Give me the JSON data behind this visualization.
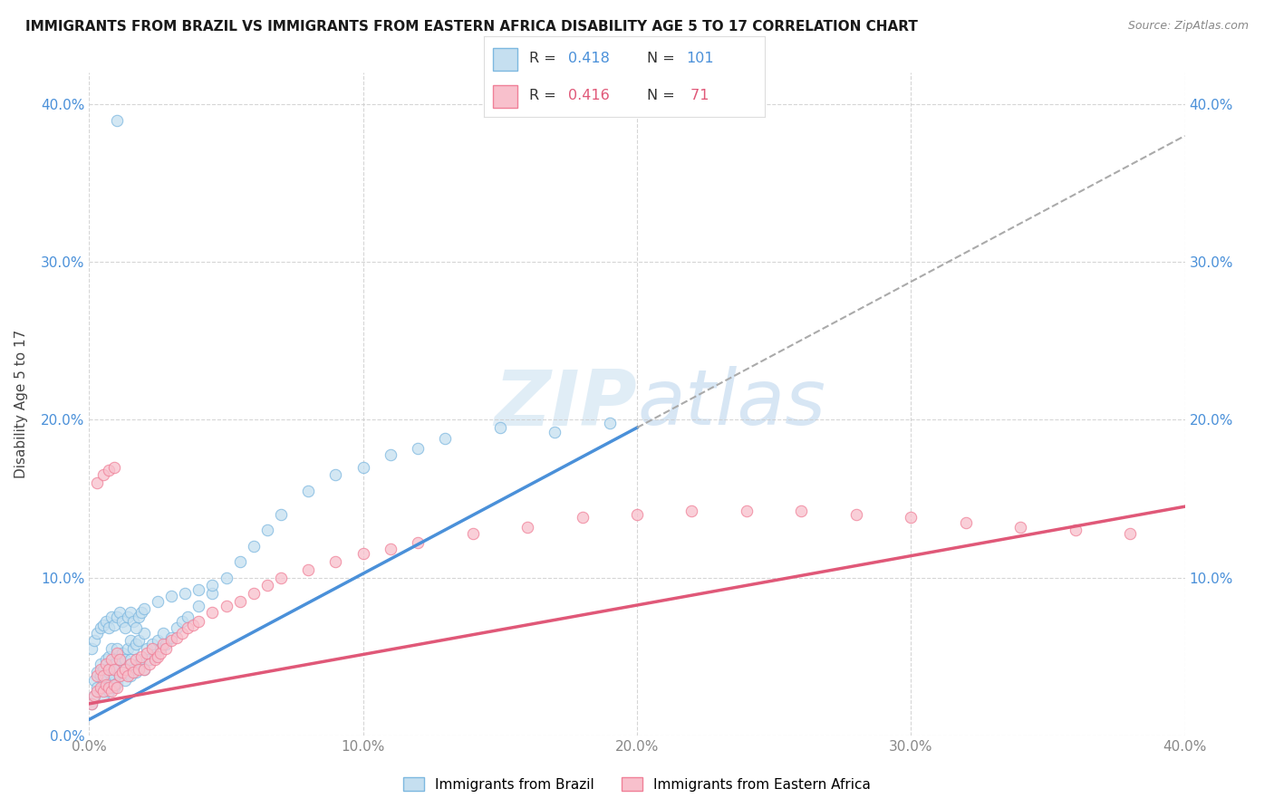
{
  "title": "IMMIGRANTS FROM BRAZIL VS IMMIGRANTS FROM EASTERN AFRICA DISABILITY AGE 5 TO 17 CORRELATION CHART",
  "source": "Source: ZipAtlas.com",
  "ylabel": "Disability Age 5 to 17",
  "xlim": [
    0.0,
    0.4
  ],
  "ylim": [
    0.0,
    0.42
  ],
  "xticks": [
    0.0,
    0.1,
    0.2,
    0.3,
    0.4
  ],
  "yticks": [
    0.0,
    0.1,
    0.2,
    0.3,
    0.4
  ],
  "brazil_color": "#7db8e0",
  "brazil_color_fill": "#c5dff0",
  "eastern_africa_color": "#f08098",
  "eastern_africa_color_fill": "#f8c0cc",
  "brazil_R": 0.418,
  "brazil_N": 101,
  "eastern_africa_R": 0.416,
  "eastern_africa_N": 71,
  "brazil_line_color": "#4a90d9",
  "eastern_africa_line_color": "#e05878",
  "dashed_line_color": "#aaaaaa",
  "legend_label_brazil": "Immigrants from Brazil",
  "legend_label_eastern": "Immigrants from Eastern Africa",
  "background_color": "#ffffff",
  "grid_color": "#cccccc",
  "title_color": "#1a1a1a",
  "watermark_color": "#c8dff0",
  "tick_color_blue": "#4a90d9",
  "tick_color_gray": "#888888",
  "brazil_trend_x0": 0.0,
  "brazil_trend_y0": 0.01,
  "brazil_trend_x1": 0.2,
  "brazil_trend_y1": 0.195,
  "brazil_trend_solid_end": 0.2,
  "brazil_trend_dashed_end": 0.4,
  "ea_trend_x0": 0.0,
  "ea_trend_y0": 0.02,
  "ea_trend_x1": 0.4,
  "ea_trend_y1": 0.145,
  "brazil_scatter_x": [
    0.001,
    0.002,
    0.002,
    0.003,
    0.003,
    0.004,
    0.004,
    0.004,
    0.005,
    0.005,
    0.005,
    0.006,
    0.006,
    0.006,
    0.007,
    0.007,
    0.007,
    0.008,
    0.008,
    0.008,
    0.008,
    0.009,
    0.009,
    0.009,
    0.01,
    0.01,
    0.01,
    0.011,
    0.011,
    0.012,
    0.012,
    0.013,
    0.013,
    0.014,
    0.014,
    0.015,
    0.015,
    0.015,
    0.016,
    0.016,
    0.017,
    0.017,
    0.018,
    0.018,
    0.019,
    0.02,
    0.02,
    0.021,
    0.022,
    0.023,
    0.024,
    0.025,
    0.026,
    0.027,
    0.028,
    0.03,
    0.032,
    0.034,
    0.036,
    0.04,
    0.045,
    0.05,
    0.055,
    0.06,
    0.065,
    0.07,
    0.08,
    0.09,
    0.1,
    0.11,
    0.12,
    0.13,
    0.15,
    0.17,
    0.19,
    0.001,
    0.002,
    0.003,
    0.004,
    0.005,
    0.006,
    0.007,
    0.008,
    0.009,
    0.01,
    0.011,
    0.012,
    0.013,
    0.014,
    0.015,
    0.016,
    0.017,
    0.018,
    0.019,
    0.02,
    0.025,
    0.03,
    0.035,
    0.04,
    0.045,
    0.01
  ],
  "brazil_scatter_y": [
    0.02,
    0.025,
    0.035,
    0.03,
    0.04,
    0.028,
    0.038,
    0.045,
    0.025,
    0.035,
    0.042,
    0.03,
    0.038,
    0.048,
    0.028,
    0.04,
    0.05,
    0.032,
    0.042,
    0.035,
    0.055,
    0.03,
    0.038,
    0.045,
    0.033,
    0.042,
    0.055,
    0.038,
    0.048,
    0.04,
    0.052,
    0.035,
    0.048,
    0.04,
    0.055,
    0.038,
    0.048,
    0.06,
    0.042,
    0.055,
    0.04,
    0.058,
    0.045,
    0.06,
    0.048,
    0.042,
    0.065,
    0.055,
    0.048,
    0.058,
    0.05,
    0.06,
    0.055,
    0.065,
    0.058,
    0.062,
    0.068,
    0.072,
    0.075,
    0.082,
    0.09,
    0.1,
    0.11,
    0.12,
    0.13,
    0.14,
    0.155,
    0.165,
    0.17,
    0.178,
    0.182,
    0.188,
    0.195,
    0.192,
    0.198,
    0.055,
    0.06,
    0.065,
    0.068,
    0.07,
    0.072,
    0.068,
    0.075,
    0.07,
    0.075,
    0.078,
    0.072,
    0.068,
    0.075,
    0.078,
    0.072,
    0.068,
    0.075,
    0.078,
    0.08,
    0.085,
    0.088,
    0.09,
    0.092,
    0.095,
    0.39
  ],
  "eastern_scatter_x": [
    0.001,
    0.002,
    0.003,
    0.003,
    0.004,
    0.004,
    0.005,
    0.005,
    0.006,
    0.006,
    0.007,
    0.007,
    0.008,
    0.008,
    0.009,
    0.009,
    0.01,
    0.01,
    0.011,
    0.011,
    0.012,
    0.013,
    0.014,
    0.015,
    0.016,
    0.017,
    0.018,
    0.019,
    0.02,
    0.021,
    0.022,
    0.023,
    0.024,
    0.025,
    0.026,
    0.027,
    0.028,
    0.03,
    0.032,
    0.034,
    0.036,
    0.038,
    0.04,
    0.045,
    0.05,
    0.055,
    0.06,
    0.065,
    0.07,
    0.08,
    0.09,
    0.1,
    0.11,
    0.12,
    0.14,
    0.16,
    0.18,
    0.2,
    0.22,
    0.24,
    0.26,
    0.28,
    0.3,
    0.32,
    0.34,
    0.36,
    0.38,
    0.003,
    0.005,
    0.007,
    0.009
  ],
  "eastern_scatter_y": [
    0.02,
    0.025,
    0.028,
    0.038,
    0.03,
    0.042,
    0.028,
    0.038,
    0.032,
    0.045,
    0.03,
    0.042,
    0.028,
    0.048,
    0.032,
    0.042,
    0.03,
    0.052,
    0.038,
    0.048,
    0.04,
    0.042,
    0.038,
    0.045,
    0.04,
    0.048,
    0.042,
    0.05,
    0.042,
    0.052,
    0.045,
    0.055,
    0.048,
    0.05,
    0.052,
    0.058,
    0.055,
    0.06,
    0.062,
    0.065,
    0.068,
    0.07,
    0.072,
    0.078,
    0.082,
    0.085,
    0.09,
    0.095,
    0.1,
    0.105,
    0.11,
    0.115,
    0.118,
    0.122,
    0.128,
    0.132,
    0.138,
    0.14,
    0.142,
    0.142,
    0.142,
    0.14,
    0.138,
    0.135,
    0.132,
    0.13,
    0.128,
    0.16,
    0.165,
    0.168,
    0.17
  ]
}
